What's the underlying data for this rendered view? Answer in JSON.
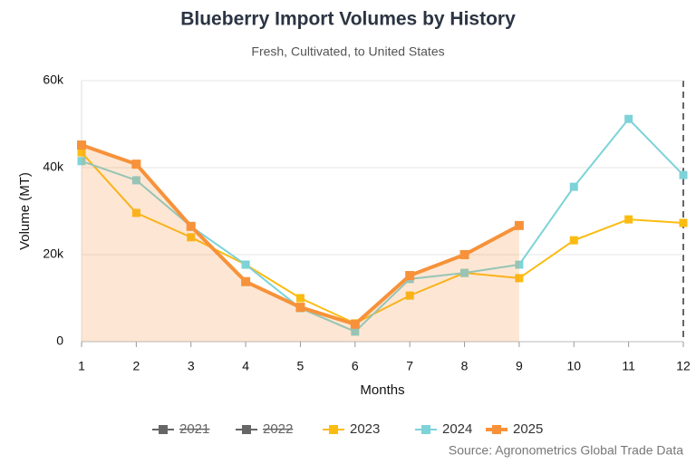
{
  "chart_data": {
    "type": "line",
    "title": "Blueberry Import Volumes by History",
    "subtitle": "Fresh, Cultivated, to United States",
    "x_label": "Months",
    "y_label": "Volume (MT)",
    "source": "Source: Agronometrics Global Trade Data",
    "categories": [
      "1",
      "2",
      "3",
      "4",
      "5",
      "6",
      "7",
      "8",
      "9",
      "10",
      "11",
      "12"
    ],
    "ylim": [
      0,
      60000
    ],
    "yticks": [
      0,
      {
        "value": 20000,
        "label": "20k"
      },
      {
        "value": 40000,
        "label": "40k"
      },
      {
        "value": 60000,
        "label": "60k"
      }
    ],
    "grid": true,
    "series": [
      {
        "name": "2021",
        "color": "#666666",
        "hidden": true,
        "values": [
          null,
          null,
          null,
          null,
          null,
          null,
          null,
          null,
          null,
          null,
          null,
          null
        ]
      },
      {
        "name": "2022",
        "color": "#666666",
        "hidden": true,
        "values": [
          null,
          null,
          null,
          null,
          null,
          null,
          null,
          null,
          null,
          null,
          null,
          null
        ]
      },
      {
        "name": "2023",
        "color": "#fbbc12",
        "values": [
          43500,
          29600,
          24000,
          17700,
          10000,
          4200,
          10600,
          15800,
          14600,
          23300,
          28100,
          27300
        ]
      },
      {
        "name": "2024",
        "color": "#7dd3d8",
        "values": [
          41500,
          37100,
          26500,
          17700,
          7700,
          2300,
          14400,
          15800,
          17700,
          35600,
          51200,
          38300
        ]
      },
      {
        "name": "2025",
        "color": "#f7923a",
        "area": true,
        "values": [
          45200,
          40800,
          26500,
          13800,
          7900,
          4000,
          15200,
          20000,
          26700,
          null,
          null,
          null
        ]
      }
    ]
  }
}
